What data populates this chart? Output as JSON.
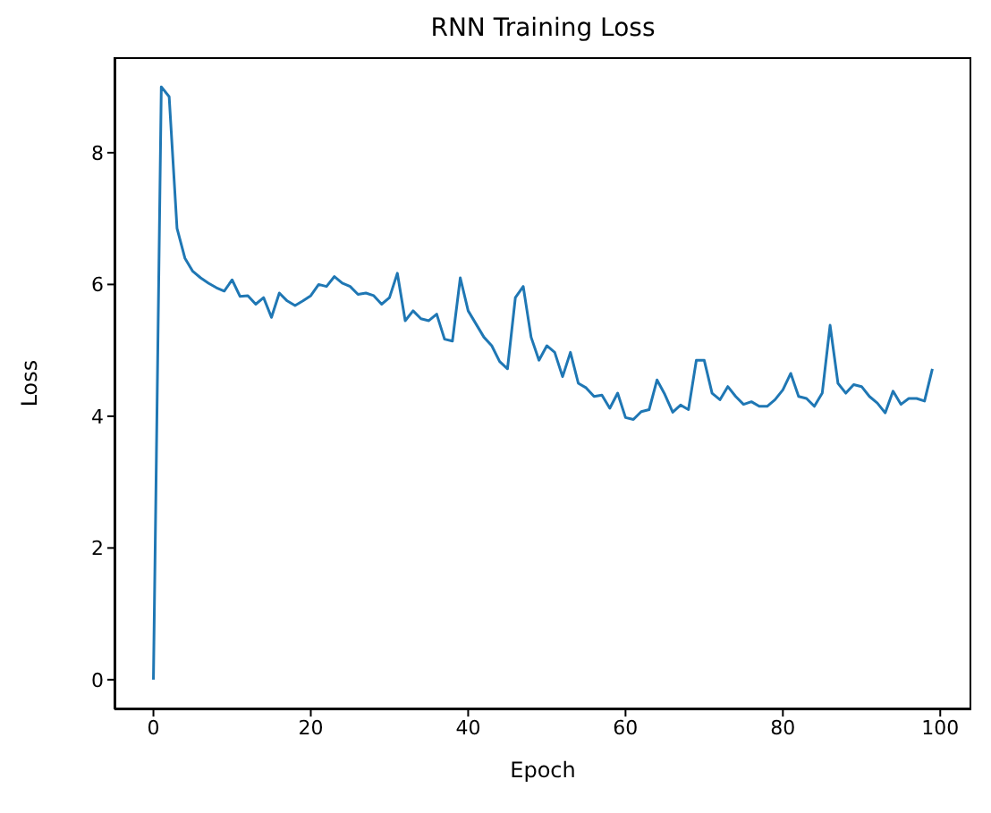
{
  "chart_data": {
    "type": "line",
    "title": "RNN Training Loss",
    "xlabel": "Epoch",
    "ylabel": "Loss",
    "x": [
      0,
      1,
      2,
      3,
      4,
      5,
      6,
      7,
      8,
      9,
      10,
      11,
      12,
      13,
      14,
      15,
      16,
      17,
      18,
      19,
      20,
      21,
      22,
      23,
      24,
      25,
      26,
      27,
      28,
      29,
      30,
      31,
      32,
      33,
      34,
      35,
      36,
      37,
      38,
      39,
      40,
      41,
      42,
      43,
      44,
      45,
      46,
      47,
      48,
      49,
      50,
      51,
      52,
      53,
      54,
      55,
      56,
      57,
      58,
      59,
      60,
      61,
      62,
      63,
      64,
      65,
      66,
      67,
      68,
      69,
      70,
      71,
      72,
      73,
      74,
      75,
      76,
      77,
      78,
      79,
      80,
      81,
      82,
      83,
      84,
      85,
      86,
      87,
      88,
      89,
      90,
      91,
      92,
      93,
      94,
      95,
      96,
      97,
      98,
      99
    ],
    "series": [
      {
        "color": "#1f77b4",
        "values": [
          0,
          9.0,
          8.85,
          6.85,
          6.4,
          6.2,
          6.1,
          6.02,
          5.95,
          5.9,
          6.07,
          5.82,
          5.83,
          5.7,
          5.8,
          5.5,
          5.87,
          5.75,
          5.68,
          5.75,
          5.83,
          6.0,
          5.97,
          6.12,
          6.02,
          5.97,
          5.85,
          5.87,
          5.83,
          5.7,
          5.8,
          6.17,
          5.45,
          5.6,
          5.48,
          5.45,
          5.55,
          5.17,
          5.14,
          6.1,
          5.6,
          5.4,
          5.2,
          5.07,
          4.83,
          4.72,
          5.8,
          5.97,
          5.2,
          4.85,
          5.07,
          4.97,
          4.6,
          4.97,
          4.5,
          4.43,
          4.3,
          4.32,
          4.12,
          4.35,
          3.98,
          3.95,
          4.07,
          4.1,
          4.55,
          4.33,
          4.06,
          4.17,
          4.1,
          4.85,
          4.85,
          4.35,
          4.25,
          4.45,
          4.3,
          4.18,
          4.22,
          4.15,
          4.15,
          4.25,
          4.4,
          4.65,
          4.3,
          4.27,
          4.15,
          4.35,
          5.38,
          4.5,
          4.35,
          4.48,
          4.45,
          4.3,
          4.2,
          4.05,
          4.38,
          4.18,
          4.27,
          4.27,
          4.23,
          4.72
        ]
      }
    ],
    "xlim": [
      -4.95,
      103.95
    ],
    "ylim": [
      -0.45,
      9.45
    ],
    "xticks": [
      0,
      20,
      40,
      60,
      80,
      100
    ],
    "yticks": [
      0,
      2,
      4,
      6,
      8
    ],
    "grid": false,
    "legend": false,
    "marker": "none",
    "line_style": "solid"
  }
}
